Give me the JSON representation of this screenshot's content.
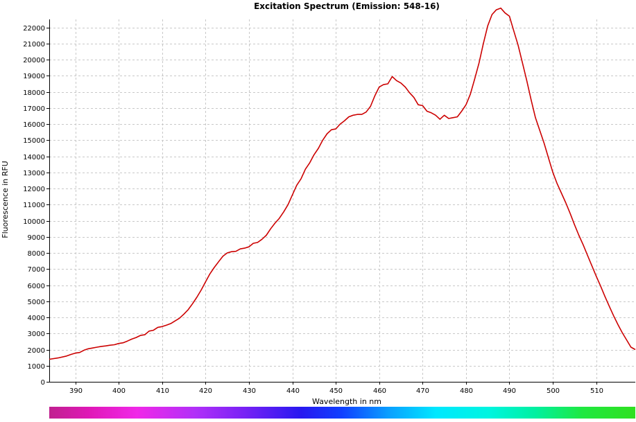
{
  "chart_data": {
    "type": "line",
    "title": "Excitation Spectrum (Emission: 548-16)",
    "xlabel": "Wavelength in nm",
    "ylabel": "Fluorescence in RFU",
    "xlim": [
      384,
      519
    ],
    "ylim": [
      0,
      22500
    ],
    "x_ticks": [
      390,
      400,
      410,
      420,
      430,
      440,
      450,
      460,
      470,
      480,
      490,
      500,
      510
    ],
    "y_ticks": [
      0,
      1000,
      2000,
      3000,
      4000,
      5000,
      6000,
      7000,
      8000,
      9000,
      10000,
      11000,
      12000,
      13000,
      14000,
      15000,
      16000,
      17000,
      18000,
      19000,
      20000,
      21000,
      22000
    ],
    "grid": true,
    "legend": "none",
    "series_color": "#cc0000",
    "spectrum_bar": true,
    "series": [
      {
        "x": [
          384,
          386,
          388,
          389,
          390,
          391,
          392,
          393,
          394,
          395,
          396,
          397,
          398,
          399,
          400,
          401,
          402,
          403,
          404,
          405,
          406,
          407,
          408,
          409,
          410,
          411,
          412,
          413,
          414,
          415,
          416,
          417,
          418,
          419,
          420,
          421,
          422,
          423,
          424,
          425,
          426,
          427,
          428,
          429,
          430,
          431,
          432,
          433,
          434,
          435,
          436,
          437,
          438,
          439,
          440,
          441,
          442,
          443,
          444,
          445,
          446,
          447,
          448,
          449,
          450,
          451,
          452,
          453,
          454,
          455,
          456,
          457,
          458,
          459,
          460,
          461,
          462,
          463,
          464,
          465,
          466,
          467,
          468,
          469,
          470,
          471,
          472,
          473,
          474,
          475,
          476,
          477,
          478,
          479,
          480,
          481,
          482,
          483,
          484,
          485,
          486,
          487,
          488,
          489,
          490,
          491,
          492,
          493,
          494,
          495,
          496,
          497,
          498,
          499,
          500,
          501,
          502,
          503,
          504,
          505,
          506,
          507,
          508,
          509,
          510,
          511,
          512,
          513,
          514,
          515,
          516,
          517,
          518,
          519
        ],
        "y": [
          1400,
          1480,
          1600,
          1700,
          1780,
          1820,
          1960,
          2050,
          2100,
          2150,
          2200,
          2230,
          2270,
          2300,
          2380,
          2420,
          2530,
          2650,
          2750,
          2880,
          2920,
          3150,
          3200,
          3380,
          3430,
          3520,
          3620,
          3780,
          3950,
          4200,
          4480,
          4850,
          5250,
          5700,
          6200,
          6700,
          7100,
          7450,
          7800,
          8000,
          8080,
          8100,
          8250,
          8300,
          8380,
          8600,
          8650,
          8850,
          9100,
          9500,
          9850,
          10150,
          10550,
          11000,
          11600,
          12200,
          12600,
          13200,
          13600,
          14100,
          14500,
          15000,
          15400,
          15650,
          15700,
          16000,
          16200,
          16450,
          16550,
          16600,
          16600,
          16750,
          17100,
          17750,
          18300,
          18450,
          18500,
          18950,
          18700,
          18550,
          18300,
          17950,
          17650,
          17200,
          17150,
          16800,
          16700,
          16550,
          16300,
          16550,
          16350,
          16400,
          16450,
          16800,
          17200,
          17850,
          18800,
          19800,
          21000,
          22100,
          22800,
          23100,
          23200,
          22900,
          22700,
          21800,
          20900,
          19800,
          18700,
          17500,
          16400,
          15600,
          14800,
          13900,
          13000,
          12300,
          11700,
          11100,
          10450,
          9750,
          9100,
          8500,
          7850,
          7200,
          6550,
          5950,
          5300,
          4700,
          4100,
          3550,
          3050,
          2600,
          2150,
          2000
        ]
      }
    ]
  }
}
